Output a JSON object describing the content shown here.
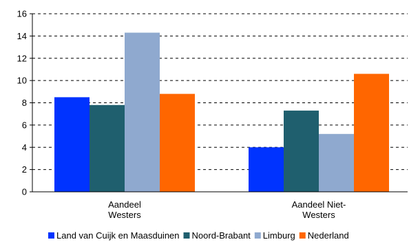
{
  "chart_data": {
    "type": "bar",
    "categories": [
      [
        "Aandeel",
        "Westers"
      ],
      [
        "Aandeel Niet-",
        "Westers"
      ]
    ],
    "series": [
      {
        "name": "Land van Cuijk en Maasduinen",
        "color": "#0033FF",
        "values": [
          8.5,
          4.0
        ]
      },
      {
        "name": "Noord-Brabant",
        "color": "#1F5F6E",
        "values": [
          7.8,
          7.3
        ]
      },
      {
        "name": "Limburg",
        "color": "#8FA9CF",
        "values": [
          14.3,
          5.2
        ]
      },
      {
        "name": "Nederland",
        "color": "#FF6600",
        "values": [
          8.8,
          10.6
        ]
      }
    ],
    "ylim": [
      0,
      16
    ],
    "yticks": [
      0,
      2,
      4,
      6,
      8,
      10,
      12,
      14,
      16
    ],
    "grid": true,
    "legend_position": "bottom"
  }
}
